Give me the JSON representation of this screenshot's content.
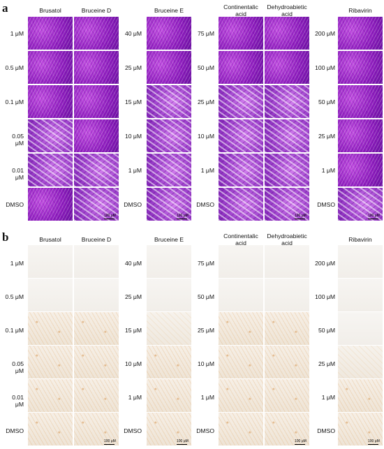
{
  "panels": [
    {
      "letter": "a"
    },
    {
      "letter": "b"
    }
  ],
  "headers": {
    "brusatol": "Brusatol",
    "bruceine_d": "Bruceine D",
    "bruceine_e": "Bruceine E",
    "continentalic": "Continentalic acid",
    "dehydroabietic": "Dehydroabietic acid",
    "ribavirin": "Ribavirin"
  },
  "row_labels": {
    "g1": [
      "1 μM",
      "0.5 μM",
      "0.1 μM",
      "0.05 μM",
      "0.01 μM",
      "DMSO"
    ],
    "g2": [
      "40 μM",
      "25 μM",
      "15 μM",
      "10 μM",
      "1 μM",
      "DMSO"
    ],
    "g3": [
      "75 μM",
      "50 μM",
      "25 μM",
      "10 μM",
      "1 μM",
      "DMSO"
    ],
    "g4": [
      "200 μM",
      "100 μM",
      "50 μM",
      "25 μM",
      "1 μM",
      "DMSO"
    ]
  },
  "scale_bar": "100 μM",
  "colors": {
    "stain_a": "#8d1cbd",
    "stain_b": "#efe8de"
  }
}
